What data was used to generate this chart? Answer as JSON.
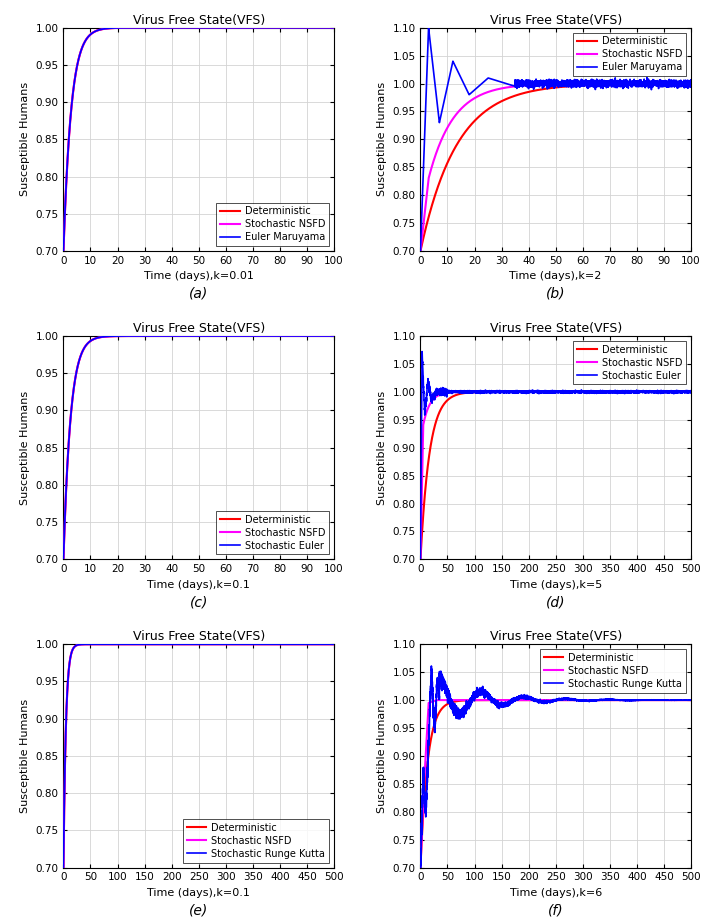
{
  "title": "Virus Free State(VFS)",
  "ylabel": "Susceptible Humans",
  "subplots": [
    {
      "label": "(a)",
      "xlabel": "Time (days),k=0.01",
      "xmax": 100,
      "xticks": [
        0,
        10,
        20,
        30,
        40,
        50,
        60,
        70,
        80,
        90,
        100
      ],
      "ylim": [
        0.7,
        1.0
      ],
      "yticks": [
        0.7,
        0.75,
        0.8,
        0.85,
        0.9,
        0.95,
        1.0
      ],
      "legend": [
        "Euler Maruyama",
        "Stochastic NSFD",
        "Deterministic"
      ],
      "colors": [
        "#0000FF",
        "#FF00FF",
        "#FF0000"
      ],
      "legend_loc": "lower right"
    },
    {
      "label": "(b)",
      "xlabel": "Time (days),k=2",
      "xmax": 100,
      "xticks": [
        0,
        10,
        20,
        30,
        40,
        50,
        60,
        70,
        80,
        90,
        100
      ],
      "ylim": [
        0.7,
        1.1
      ],
      "yticks": [
        0.7,
        0.75,
        0.8,
        0.85,
        0.9,
        0.95,
        1.0,
        1.05,
        1.1
      ],
      "legend": [
        "Euler Maruyama",
        "Stochastic NSFD",
        "Deterministic"
      ],
      "colors": [
        "#0000FF",
        "#FF00FF",
        "#FF0000"
      ],
      "legend_loc": "lower right"
    },
    {
      "label": "(c)",
      "xlabel": "Time (days),k=0.1",
      "xmax": 100,
      "xticks": [
        0,
        10,
        20,
        30,
        40,
        50,
        60,
        70,
        80,
        90,
        100
      ],
      "ylim": [
        0.7,
        1.0
      ],
      "yticks": [
        0.7,
        0.75,
        0.8,
        0.85,
        0.9,
        0.95,
        1.0
      ],
      "legend": [
        "Stochastic Euler",
        "Stochastic NSFD",
        "Deterministic"
      ],
      "colors": [
        "#0000FF",
        "#FF00FF",
        "#FF0000"
      ],
      "legend_loc": "lower right"
    },
    {
      "label": "(d)",
      "xlabel": "Time (days),k=5",
      "xmax": 500,
      "xticks": [
        0,
        50,
        100,
        150,
        200,
        250,
        300,
        350,
        400,
        450,
        500
      ],
      "ylim": [
        0.7,
        1.1
      ],
      "yticks": [
        0.7,
        0.75,
        0.8,
        0.85,
        0.9,
        0.95,
        1.0,
        1.05,
        1.1
      ],
      "legend": [
        "Stochastic Euler",
        "Stochastic NSFD",
        "Deterministic"
      ],
      "colors": [
        "#0000FF",
        "#FF00FF",
        "#FF0000"
      ],
      "legend_loc": "lower right"
    },
    {
      "label": "(e)",
      "xlabel": "Time (days),k=0.1",
      "xmax": 500,
      "xticks": [
        0,
        50,
        100,
        150,
        200,
        250,
        300,
        350,
        400,
        450,
        500
      ],
      "ylim": [
        0.7,
        1.0
      ],
      "yticks": [
        0.7,
        0.75,
        0.8,
        0.85,
        0.9,
        0.95,
        1.0
      ],
      "legend": [
        "Stochastic Runge Kutta",
        "Stochastic NSFD",
        "Deterministic"
      ],
      "colors": [
        "#0000FF",
        "#FF00FF",
        "#FF0000"
      ],
      "legend_loc": "lower right"
    },
    {
      "label": "(f)",
      "xlabel": "Time (days),k=6",
      "xmax": 500,
      "xticks": [
        0,
        50,
        100,
        150,
        200,
        250,
        300,
        350,
        400,
        450,
        500
      ],
      "ylim": [
        0.7,
        1.1
      ],
      "yticks": [
        0.7,
        0.75,
        0.8,
        0.85,
        0.9,
        0.95,
        1.0,
        1.05,
        1.1
      ],
      "legend": [
        "Stochastic Runge Kutta",
        "Stochastic NSFD",
        "Deterministic"
      ],
      "colors": [
        "#0000FF",
        "#FF00FF",
        "#FF0000"
      ],
      "legend_loc": "lower right"
    }
  ],
  "background_color": "#FFFFFF",
  "grid_color": "#D3D3D3",
  "title_fontsize": 9,
  "label_fontsize": 8,
  "tick_fontsize": 7.5,
  "legend_fontsize": 7
}
